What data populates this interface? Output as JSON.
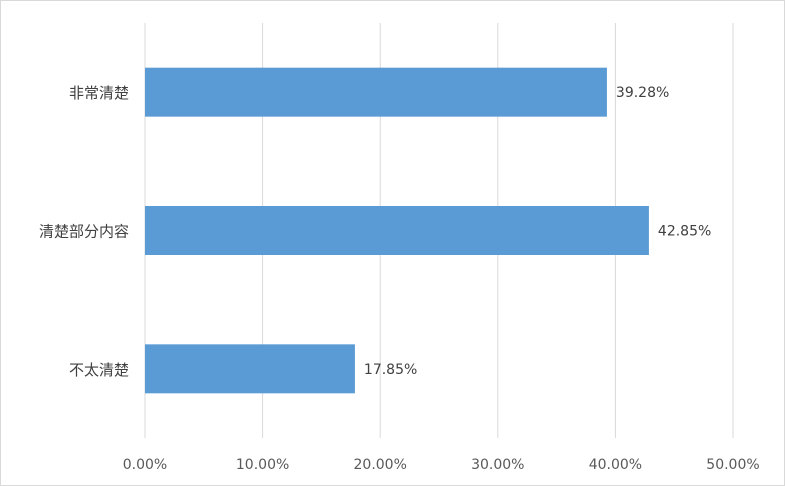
{
  "chart_data": {
    "type": "bar",
    "orientation": "horizontal",
    "categories": [
      "非常清楚",
      "清楚部分内容",
      "不太清楚"
    ],
    "values": [
      39.28,
      42.85,
      17.85
    ],
    "data_labels": [
      "39.28%",
      "42.85%",
      "17.85%"
    ],
    "xlim": [
      0,
      50
    ],
    "x_ticks": [
      0,
      10,
      20,
      30,
      40,
      50
    ],
    "x_tick_labels": [
      "0.00%",
      "10.00%",
      "20.00%",
      "30.00%",
      "40.00%",
      "50.00%"
    ],
    "grid": "vertical",
    "legend": "none",
    "bar_color": "#5b9bd5",
    "grid_color": "#d9d9d9"
  }
}
